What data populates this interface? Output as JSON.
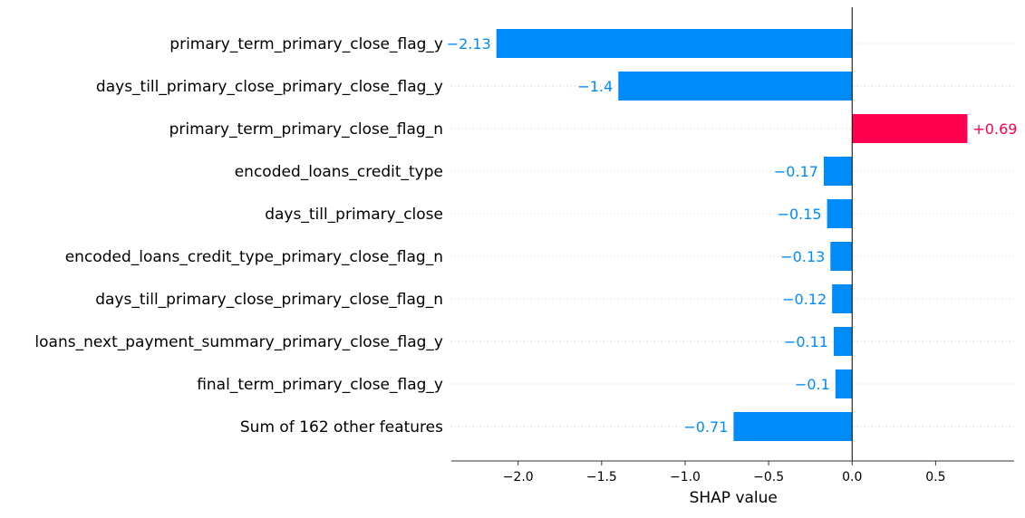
{
  "chart_data": {
    "type": "bar",
    "orientation": "horizontal",
    "title": "",
    "xlabel": "SHAP value",
    "ylabel": "",
    "xlim": [
      -2.4,
      0.97
    ],
    "grid": "horizontal-dotted",
    "baseline": 0,
    "xticks": [
      {
        "value": -2.0,
        "label": "−2.0"
      },
      {
        "value": -1.5,
        "label": "−1.5"
      },
      {
        "value": -1.0,
        "label": "−1.0"
      },
      {
        "value": -0.5,
        "label": "−0.5"
      },
      {
        "value": 0.0,
        "label": "0.0"
      },
      {
        "value": 0.5,
        "label": "0.5"
      }
    ],
    "categories": [
      "primary_term_primary_close_flag_y",
      "days_till_primary_close_primary_close_flag_y",
      "primary_term_primary_close_flag_n",
      "encoded_loans_credit_type",
      "days_till_primary_close",
      "encoded_loans_credit_type_primary_close_flag_n",
      "days_till_primary_close_primary_close_flag_n",
      "loans_next_payment_summary_primary_close_flag_y",
      "final_term_primary_close_flag_y",
      "Sum of 162 other features"
    ],
    "values": [
      -2.13,
      -1.4,
      0.69,
      -0.17,
      -0.15,
      -0.13,
      -0.12,
      -0.11,
      -0.1,
      -0.71
    ],
    "value_labels": [
      "−2.13",
      "−1.4",
      "+0.69",
      "−0.17",
      "−0.15",
      "−0.13",
      "−0.12",
      "−0.11",
      "−0.1",
      "−0.71"
    ],
    "colors": {
      "negative": "#008bfb",
      "positive": "#ff0051",
      "axis": "#333333",
      "zero_line": "#000000",
      "grid": "#cccccc",
      "label_text": "#000000"
    }
  }
}
